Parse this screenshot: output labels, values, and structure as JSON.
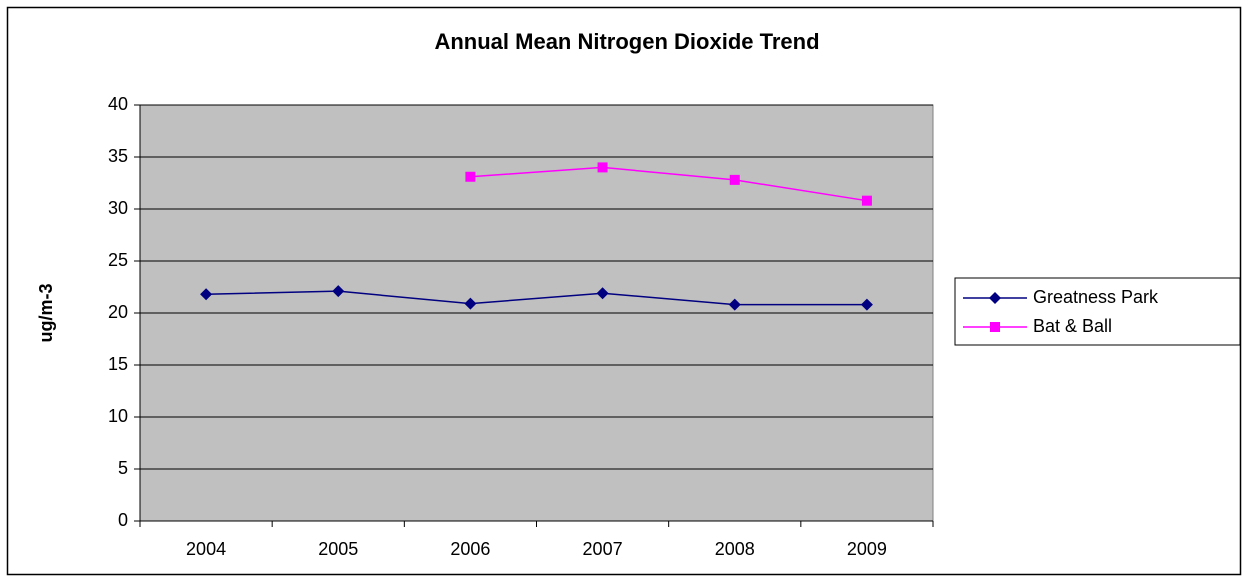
{
  "chart_data": {
    "type": "line",
    "title": "Annual Mean Nitrogen Dioxide Trend",
    "y_label": "ug/m-3",
    "categories": [
      "2004",
      "2005",
      "2006",
      "2007",
      "2008",
      "2009"
    ],
    "series": [
      {
        "name": "Greatness Park",
        "color": "#000080",
        "marker": "diamond",
        "values": [
          21.8,
          22.1,
          20.9,
          21.9,
          20.8,
          20.8
        ]
      },
      {
        "name": "Bat & Ball",
        "color": "#ff00ff",
        "marker": "square",
        "values": [
          null,
          null,
          33.1,
          34.0,
          32.8,
          30.8
        ]
      }
    ],
    "ylim": [
      0,
      40
    ],
    "yticks": [
      0,
      5,
      10,
      15,
      20,
      25,
      30,
      35,
      40
    ],
    "grid": true,
    "legend": "right"
  }
}
